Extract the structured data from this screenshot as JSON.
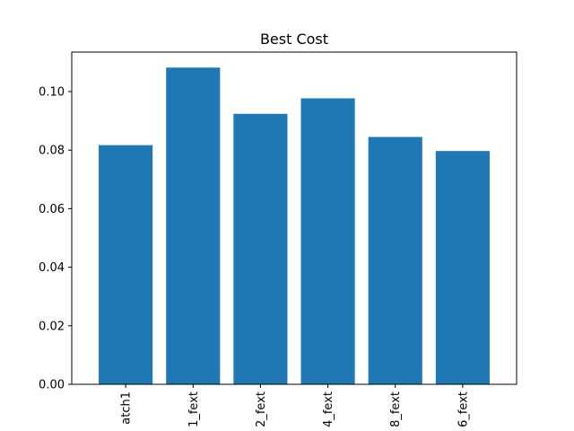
{
  "colors": {
    "bar": "#1f77b4",
    "axis": "#000000",
    "background": "#ffffff"
  },
  "chart_data": {
    "type": "bar",
    "title": "Best Cost",
    "xlabel": "",
    "ylabel": "",
    "categories": [
      "atch1",
      "1_fext",
      "2_fext",
      "4_fext",
      "8_fext",
      "6_fext"
    ],
    "values": [
      0.0817,
      0.1082,
      0.0924,
      0.0977,
      0.0845,
      0.0797
    ],
    "ylim": [
      0,
      0.1135
    ],
    "yticks": [
      0.0,
      0.02,
      0.04,
      0.06,
      0.08,
      0.1
    ],
    "ytick_labels": [
      "0.00",
      "0.02",
      "0.04",
      "0.06",
      "0.08",
      "0.10"
    ],
    "grid": false,
    "legend": "none"
  }
}
